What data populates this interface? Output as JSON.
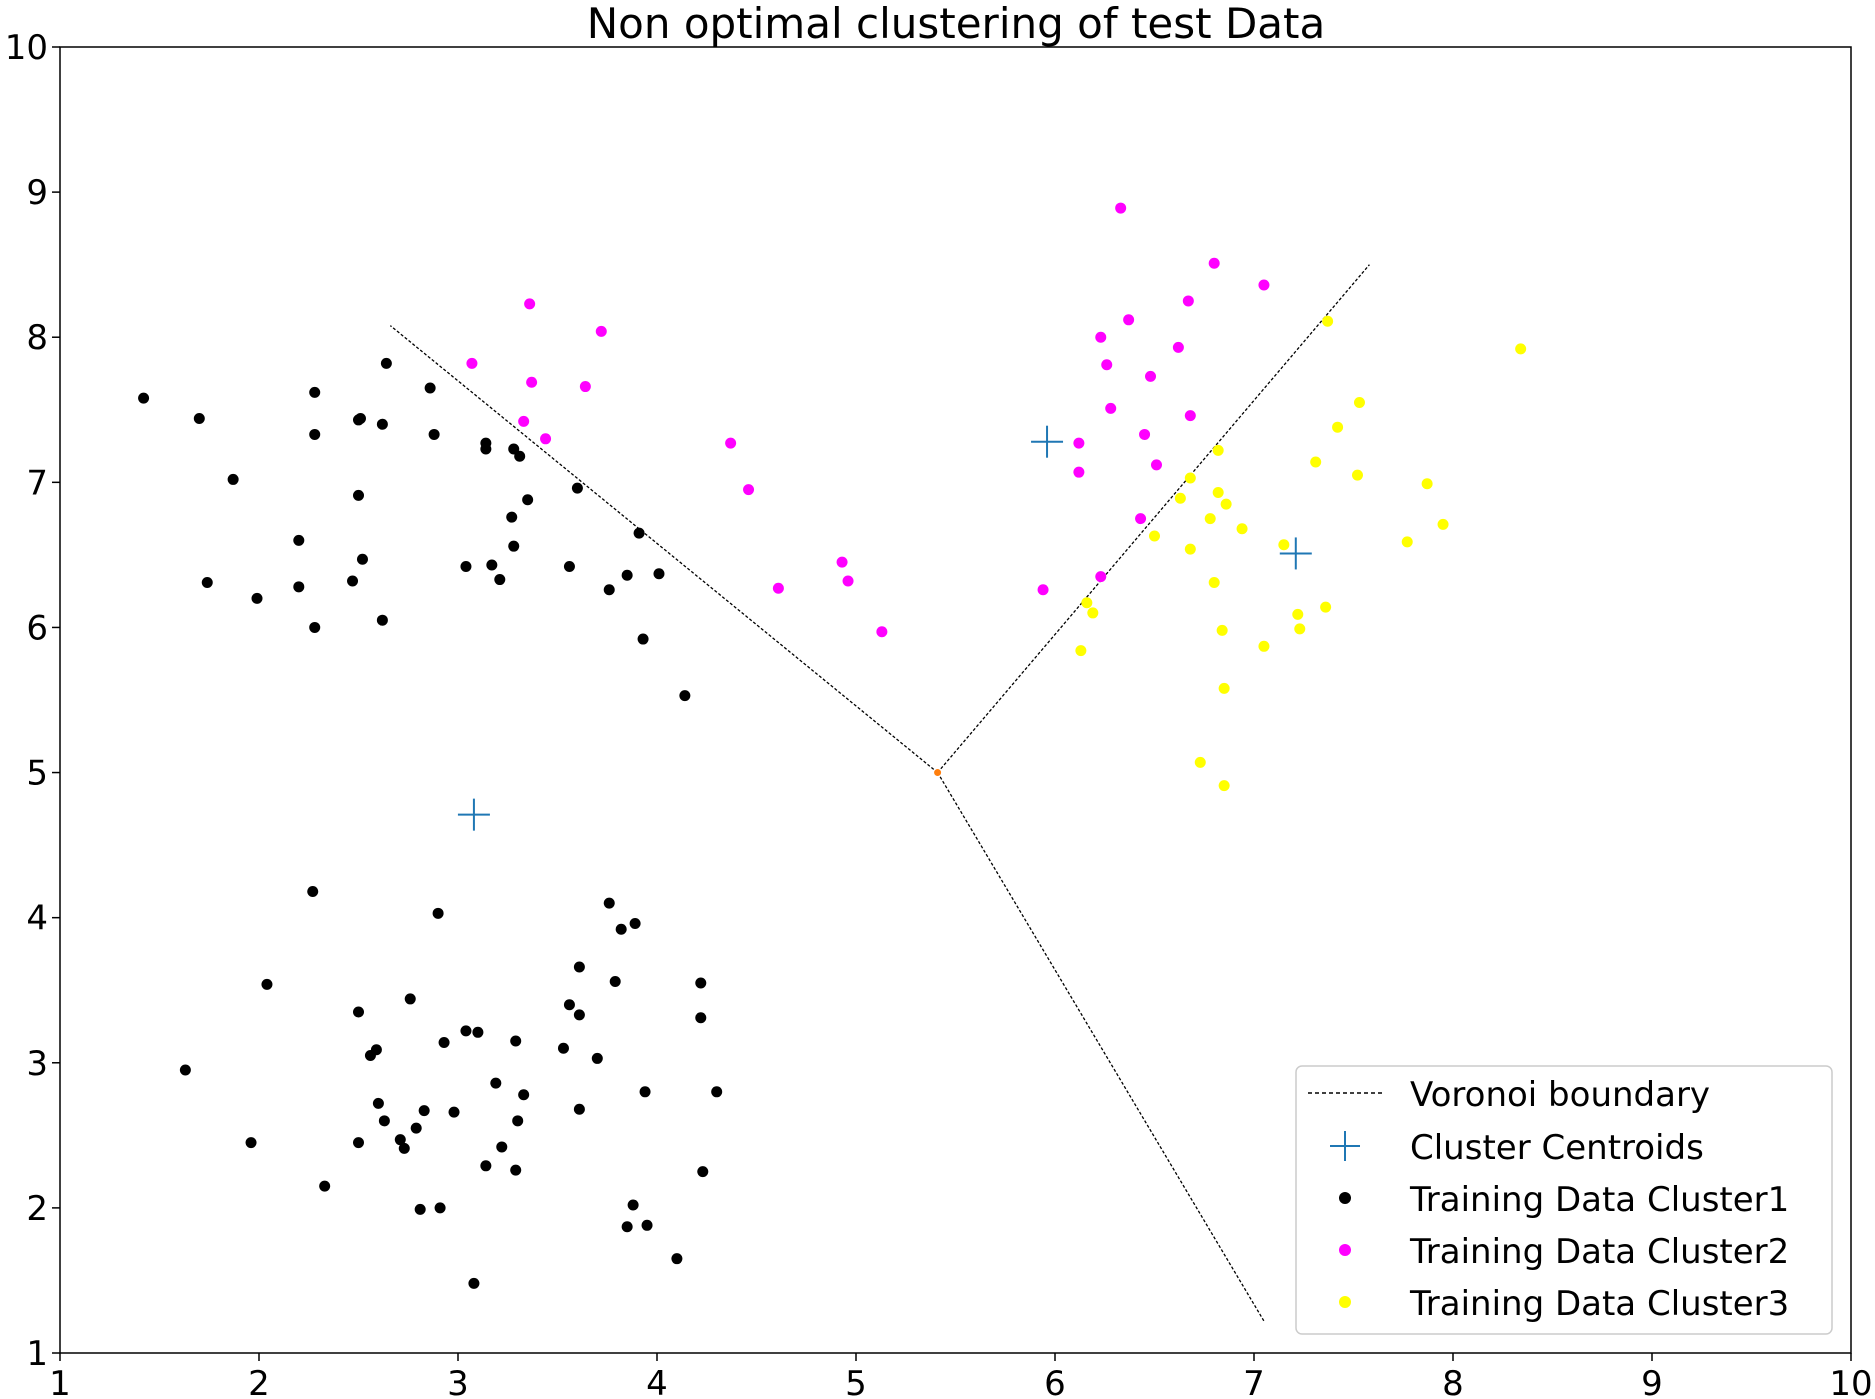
{
  "chart_data": {
    "type": "scatter",
    "title": "Non optimal clustering of test Data",
    "xlabel": "",
    "ylabel": "",
    "xlim": [
      1,
      10
    ],
    "ylim": [
      1,
      10
    ],
    "xticks": [
      "1",
      "2",
      "3",
      "4",
      "5",
      "6",
      "7",
      "8",
      "9",
      "10"
    ],
    "yticks": [
      "1",
      "2",
      "3",
      "4",
      "5",
      "6",
      "7",
      "8",
      "9",
      "10"
    ],
    "grid": false,
    "legend_position": "lower-right",
    "voronoi": {
      "name": "Voronoi boundary",
      "color": "#000000",
      "vertex": [
        5.41,
        5.0
      ],
      "vertex_color": "#ff7f0e",
      "segments": [
        [
          [
            5.41,
            5.0
          ],
          [
            2.66,
            8.08
          ]
        ],
        [
          [
            5.41,
            5.0
          ],
          [
            7.58,
            8.5
          ]
        ],
        [
          [
            5.41,
            5.0
          ],
          [
            7.05,
            1.22
          ]
        ]
      ]
    },
    "centroids": {
      "name": "Cluster Centroids",
      "color": "#1f77b4",
      "points": [
        [
          3.08,
          4.71
        ],
        [
          5.96,
          7.28
        ],
        [
          7.21,
          6.51
        ]
      ]
    },
    "series": [
      {
        "name": "Training Data Cluster1",
        "color": "#000000",
        "points": [
          [
            1.42,
            7.58
          ],
          [
            1.7,
            7.44
          ],
          [
            1.87,
            7.02
          ],
          [
            1.74,
            6.31
          ],
          [
            1.99,
            6.2
          ],
          [
            2.2,
            6.6
          ],
          [
            2.2,
            6.28
          ],
          [
            2.28,
            7.62
          ],
          [
            2.28,
            7.33
          ],
          [
            2.28,
            6.0
          ],
          [
            2.47,
            6.32
          ],
          [
            2.5,
            7.43
          ],
          [
            2.51,
            7.44
          ],
          [
            2.5,
            6.91
          ],
          [
            2.52,
            6.47
          ],
          [
            2.62,
            7.4
          ],
          [
            2.62,
            6.05
          ],
          [
            2.64,
            7.82
          ],
          [
            2.86,
            7.65
          ],
          [
            2.88,
            7.33
          ],
          [
            3.04,
            6.42
          ],
          [
            3.14,
            7.27
          ],
          [
            3.14,
            7.23
          ],
          [
            3.17,
            6.43
          ],
          [
            3.21,
            6.33
          ],
          [
            3.27,
            6.76
          ],
          [
            3.28,
            7.23
          ],
          [
            3.28,
            6.56
          ],
          [
            3.31,
            7.18
          ],
          [
            3.35,
            6.88
          ],
          [
            3.56,
            6.42
          ],
          [
            3.6,
            6.96
          ],
          [
            3.76,
            6.26
          ],
          [
            3.85,
            6.36
          ],
          [
            3.91,
            6.65
          ],
          [
            3.93,
            5.92
          ],
          [
            4.01,
            6.37
          ],
          [
            4.14,
            5.53
          ],
          [
            2.27,
            4.18
          ],
          [
            2.04,
            3.54
          ],
          [
            1.63,
            2.95
          ],
          [
            1.96,
            2.45
          ],
          [
            2.33,
            2.15
          ],
          [
            2.5,
            3.35
          ],
          [
            2.5,
            2.45
          ],
          [
            2.56,
            3.05
          ],
          [
            2.59,
            3.09
          ],
          [
            2.6,
            2.72
          ],
          [
            2.63,
            2.6
          ],
          [
            2.71,
            2.47
          ],
          [
            2.73,
            2.41
          ],
          [
            2.76,
            3.44
          ],
          [
            2.79,
            2.55
          ],
          [
            2.81,
            1.99
          ],
          [
            2.83,
            2.67
          ],
          [
            2.9,
            4.03
          ],
          [
            2.91,
            2.0
          ],
          [
            2.93,
            3.14
          ],
          [
            2.98,
            2.66
          ],
          [
            3.04,
            3.22
          ],
          [
            3.08,
            1.48
          ],
          [
            3.1,
            3.21
          ],
          [
            3.14,
            2.29
          ],
          [
            3.19,
            2.86
          ],
          [
            3.22,
            2.42
          ],
          [
            3.29,
            3.15
          ],
          [
            3.29,
            2.26
          ],
          [
            3.3,
            2.6
          ],
          [
            3.33,
            2.78
          ],
          [
            3.53,
            3.1
          ],
          [
            3.56,
            3.4
          ],
          [
            3.61,
            3.66
          ],
          [
            3.61,
            3.33
          ],
          [
            3.61,
            2.68
          ],
          [
            3.7,
            3.03
          ],
          [
            3.76,
            4.1
          ],
          [
            3.79,
            3.56
          ],
          [
            3.82,
            3.92
          ],
          [
            3.85,
            1.87
          ],
          [
            3.88,
            2.02
          ],
          [
            3.89,
            3.96
          ],
          [
            3.94,
            2.8
          ],
          [
            3.95,
            1.88
          ],
          [
            4.1,
            1.65
          ],
          [
            4.22,
            3.55
          ],
          [
            4.22,
            3.31
          ],
          [
            4.23,
            2.25
          ],
          [
            4.3,
            2.8
          ]
        ]
      },
      {
        "name": "Training Data Cluster2",
        "color": "#ff00ff",
        "points": [
          [
            3.07,
            7.82
          ],
          [
            3.33,
            7.42
          ],
          [
            3.36,
            8.23
          ],
          [
            3.37,
            7.69
          ],
          [
            3.44,
            7.3
          ],
          [
            3.64,
            7.66
          ],
          [
            3.72,
            8.04
          ],
          [
            4.37,
            7.27
          ],
          [
            4.46,
            6.95
          ],
          [
            4.61,
            6.27
          ],
          [
            4.93,
            6.45
          ],
          [
            4.96,
            6.32
          ],
          [
            5.13,
            5.97
          ],
          [
            5.94,
            6.26
          ],
          [
            6.12,
            7.27
          ],
          [
            6.12,
            7.07
          ],
          [
            6.23,
            6.35
          ],
          [
            6.23,
            8.0
          ],
          [
            6.26,
            7.81
          ],
          [
            6.28,
            7.51
          ],
          [
            6.33,
            8.89
          ],
          [
            6.37,
            8.12
          ],
          [
            6.43,
            6.75
          ],
          [
            6.45,
            7.33
          ],
          [
            6.48,
            7.73
          ],
          [
            6.51,
            7.12
          ],
          [
            6.62,
            7.93
          ],
          [
            6.67,
            8.25
          ],
          [
            6.68,
            7.46
          ],
          [
            6.8,
            8.51
          ],
          [
            7.05,
            8.36
          ]
        ]
      },
      {
        "name": "Training Data Cluster3",
        "color": "#ffff00",
        "points": [
          [
            6.13,
            5.84
          ],
          [
            6.16,
            6.17
          ],
          [
            6.19,
            6.1
          ],
          [
            6.5,
            6.63
          ],
          [
            6.63,
            6.89
          ],
          [
            6.68,
            6.54
          ],
          [
            6.68,
            7.03
          ],
          [
            6.73,
            5.07
          ],
          [
            6.78,
            6.75
          ],
          [
            6.8,
            6.31
          ],
          [
            6.82,
            6.93
          ],
          [
            6.82,
            7.22
          ],
          [
            6.84,
            5.98
          ],
          [
            6.85,
            4.91
          ],
          [
            6.85,
            5.58
          ],
          [
            6.86,
            6.85
          ],
          [
            6.94,
            6.68
          ],
          [
            7.05,
            5.87
          ],
          [
            7.15,
            6.57
          ],
          [
            7.22,
            6.09
          ],
          [
            7.23,
            5.99
          ],
          [
            7.31,
            7.14
          ],
          [
            7.36,
            6.14
          ],
          [
            7.37,
            8.11
          ],
          [
            7.42,
            7.38
          ],
          [
            7.52,
            7.05
          ],
          [
            7.53,
            7.55
          ],
          [
            7.77,
            6.59
          ],
          [
            7.87,
            6.99
          ],
          [
            7.95,
            6.71
          ],
          [
            8.34,
            7.92
          ]
        ]
      }
    ]
  }
}
